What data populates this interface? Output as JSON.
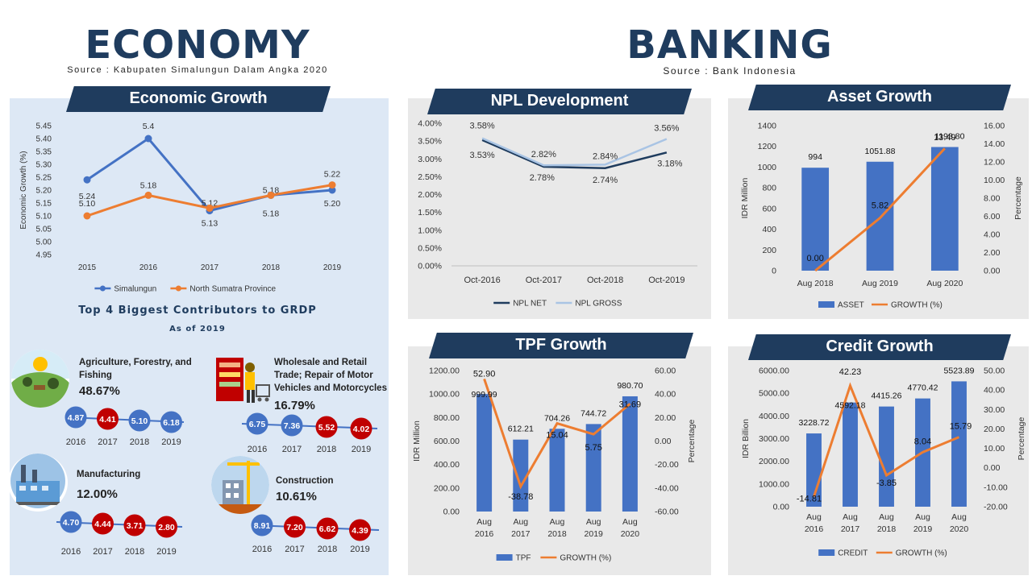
{
  "economy": {
    "title": "ECONOMY",
    "source": "Source : Kabupaten Simalungun Dalam Angka 2020",
    "growth_banner": "Economic Growth",
    "contrib_title": "Top 4 Biggest Contributors to GRDP",
    "contrib_sub": "As of 2019",
    "contributors": [
      {
        "name": "Agriculture, Forestry, and Fishing",
        "share": "48.67%",
        "icon": "agriculture-icon",
        "values": [
          "4.87",
          "4.41",
          "5.10",
          "6.18"
        ],
        "colors": [
          "#4472c4",
          "#c00000",
          "#4472c4",
          "#4472c4"
        ],
        "years": [
          "2016",
          "2017",
          "2018",
          "2019"
        ]
      },
      {
        "name": "Wholesale and Retail Trade; Repair of Motor Vehicles and Motorcycles",
        "share": "16.79%",
        "icon": "shopping-icon",
        "values": [
          "6.75",
          "7.36",
          "5.52",
          "4.02"
        ],
        "colors": [
          "#4472c4",
          "#4472c4",
          "#c00000",
          "#c00000"
        ],
        "years": [
          "2016",
          "2017",
          "2018",
          "2019"
        ]
      },
      {
        "name": "Manufacturing",
        "share": "12.00%",
        "icon": "factory-icon",
        "values": [
          "4.70",
          "4.44",
          "3.71",
          "2.80"
        ],
        "colors": [
          "#4472c4",
          "#c00000",
          "#c00000",
          "#c00000"
        ],
        "years": [
          "2016",
          "2017",
          "2018",
          "2019"
        ]
      },
      {
        "name": "Construction",
        "share": "10.61%",
        "icon": "construction-icon",
        "values": [
          "8.91",
          "7.20",
          "6.62",
          "4.39"
        ],
        "colors": [
          "#4472c4",
          "#c00000",
          "#c00000",
          "#c00000"
        ],
        "years": [
          "2016",
          "2017",
          "2018",
          "2019"
        ]
      }
    ]
  },
  "banking": {
    "title": "BANKING",
    "source": "Source : Bank Indonesia",
    "npl_banner": "NPL Development",
    "asset_banner": "Asset Growth",
    "tpf_banner": "TPF Growth",
    "credit_banner": "Credit Growth"
  },
  "chart_data": [
    {
      "id": "economic_growth",
      "type": "line",
      "x": [
        "2015",
        "2016",
        "2017",
        "2018",
        "2019"
      ],
      "ylabel": "Economic Growth (%)",
      "ylim": [
        4.95,
        5.45
      ],
      "yticks": [
        "4.95",
        "5.00",
        "5.05",
        "5.10",
        "5.15",
        "5.20",
        "5.25",
        "5.30",
        "5.35",
        "5.40",
        "5.45"
      ],
      "series": [
        {
          "name": "Simalungun",
          "color": "#4472c4",
          "values": [
            5.24,
            5.4,
            5.12,
            5.18,
            5.2
          ],
          "labels": [
            "5.24",
            "5.4",
            "5.12",
            "5.18",
            "5.20"
          ]
        },
        {
          "name": "North Sumatra Province",
          "color": "#ed7d31",
          "values": [
            5.1,
            5.18,
            5.13,
            5.18,
            5.22
          ],
          "labels": [
            "5.10",
            "5.18",
            "5.13",
            "5.18",
            "5.22"
          ]
        }
      ],
      "legend": "bottom"
    },
    {
      "id": "npl_development",
      "type": "line",
      "x": [
        "Oct-2016",
        "Oct-2017",
        "Oct-2018",
        "Oct-2019"
      ],
      "ylim": [
        0,
        4
      ],
      "yticks": [
        "0.00%",
        "0.50%",
        "1.00%",
        "1.50%",
        "2.00%",
        "2.50%",
        "3.00%",
        "3.50%",
        "4.00%"
      ],
      "series": [
        {
          "name": "NPL NET",
          "color": "#1f3c5e",
          "values": [
            3.53,
            2.78,
            2.74,
            3.18
          ],
          "labels": [
            "3.53%",
            "2.78%",
            "2.74%",
            "3.18%"
          ]
        },
        {
          "name": "NPL GROSS",
          "color": "#a9c4e4",
          "values": [
            3.58,
            2.82,
            2.84,
            3.56
          ],
          "labels": [
            "3.58%",
            "2.82%",
            "2.84%",
            "3.56%"
          ]
        }
      ],
      "legend": "bottom"
    },
    {
      "id": "asset_growth",
      "type": "bar",
      "categories": [
        "Aug 2018",
        "Aug 2019",
        "Aug 2020"
      ],
      "ylabel": "IDR Million",
      "y2label": "Percentage",
      "ylim": [
        0,
        1400
      ],
      "y2lim": [
        0,
        16
      ],
      "yticks": [
        "0",
        "200",
        "400",
        "600",
        "800",
        "1000",
        "1200",
        "1400"
      ],
      "y2ticks": [
        "0.00",
        "2.00",
        "4.00",
        "6.00",
        "8.00",
        "10.00",
        "12.00",
        "14.00",
        "16.00"
      ],
      "series": [
        {
          "name": "ASSET",
          "color": "#4472c4",
          "values": [
            994,
            1051.88,
            1193.8
          ],
          "labels": [
            "994",
            "1051.88",
            "1193.80"
          ]
        },
        {
          "name": "GROWTH (%)",
          "color": "#ed7d31",
          "axis": "right",
          "values": [
            0.0,
            5.82,
            13.49
          ],
          "labels": [
            "0.00",
            "5.82",
            "13.49"
          ]
        }
      ],
      "legend": "bottom"
    },
    {
      "id": "tpf_growth",
      "type": "bar",
      "categories": [
        "Aug 2016",
        "Aug 2017",
        "Aug 2018",
        "Aug 2019",
        "Aug 2020"
      ],
      "ylabel": "IDR Million",
      "y2label": "Percentage",
      "ylim": [
        0,
        1200
      ],
      "y2lim": [
        -60,
        60
      ],
      "yticks": [
        "0.00",
        "200.00",
        "400.00",
        "600.00",
        "800.00",
        "1000.00",
        "1200.00"
      ],
      "y2ticks": [
        "-60.00",
        "-40.00",
        "-20.00",
        "0.00",
        "20.00",
        "40.00",
        "60.00"
      ],
      "series": [
        {
          "name": "TPF",
          "color": "#4472c4",
          "values": [
            999.99,
            612.21,
            704.26,
            744.72,
            980.7
          ],
          "labels": [
            "999.99",
            "612.21",
            "704.26",
            "744.72",
            "980.70"
          ]
        },
        {
          "name": "GROWTH (%)",
          "color": "#ed7d31",
          "axis": "right",
          "values": [
            52.9,
            -38.78,
            15.04,
            5.75,
            31.69
          ],
          "labels": [
            "52.90",
            "-38.78",
            "15.04",
            "5.75",
            "31.69"
          ]
        }
      ],
      "legend": "bottom"
    },
    {
      "id": "credit_growth",
      "type": "bar",
      "categories": [
        "Aug 2016",
        "Aug 2017",
        "Aug 2018",
        "Aug 2019",
        "Aug 2020"
      ],
      "ylabel": "IDR Billion",
      "y2label": "Percentage",
      "ylim": [
        0,
        6000
      ],
      "y2lim": [
        -20,
        50
      ],
      "yticks": [
        "0.00",
        "1000.00",
        "2000.00",
        "3000.00",
        "4000.00",
        "5000.00",
        "6000.00"
      ],
      "y2ticks": [
        "-20.00",
        "-10.00",
        "0.00",
        "10.00",
        "20.00",
        "30.00",
        "40.00",
        "50.00"
      ],
      "series": [
        {
          "name": "CREDIT",
          "color": "#4472c4",
          "values": [
            3228.72,
            4592.18,
            4415.26,
            4770.42,
            5523.89
          ],
          "labels": [
            "3228.72",
            "4592.18",
            "4415.26",
            "4770.42",
            "5523.89"
          ]
        },
        {
          "name": "GROWTH (%)",
          "color": "#ed7d31",
          "axis": "right",
          "values": [
            -14.81,
            42.23,
            -3.85,
            8.04,
            15.79
          ],
          "labels": [
            "-14.81",
            "42.23",
            "-3.85",
            "8.04",
            "15.79"
          ]
        }
      ],
      "legend": "bottom"
    }
  ]
}
